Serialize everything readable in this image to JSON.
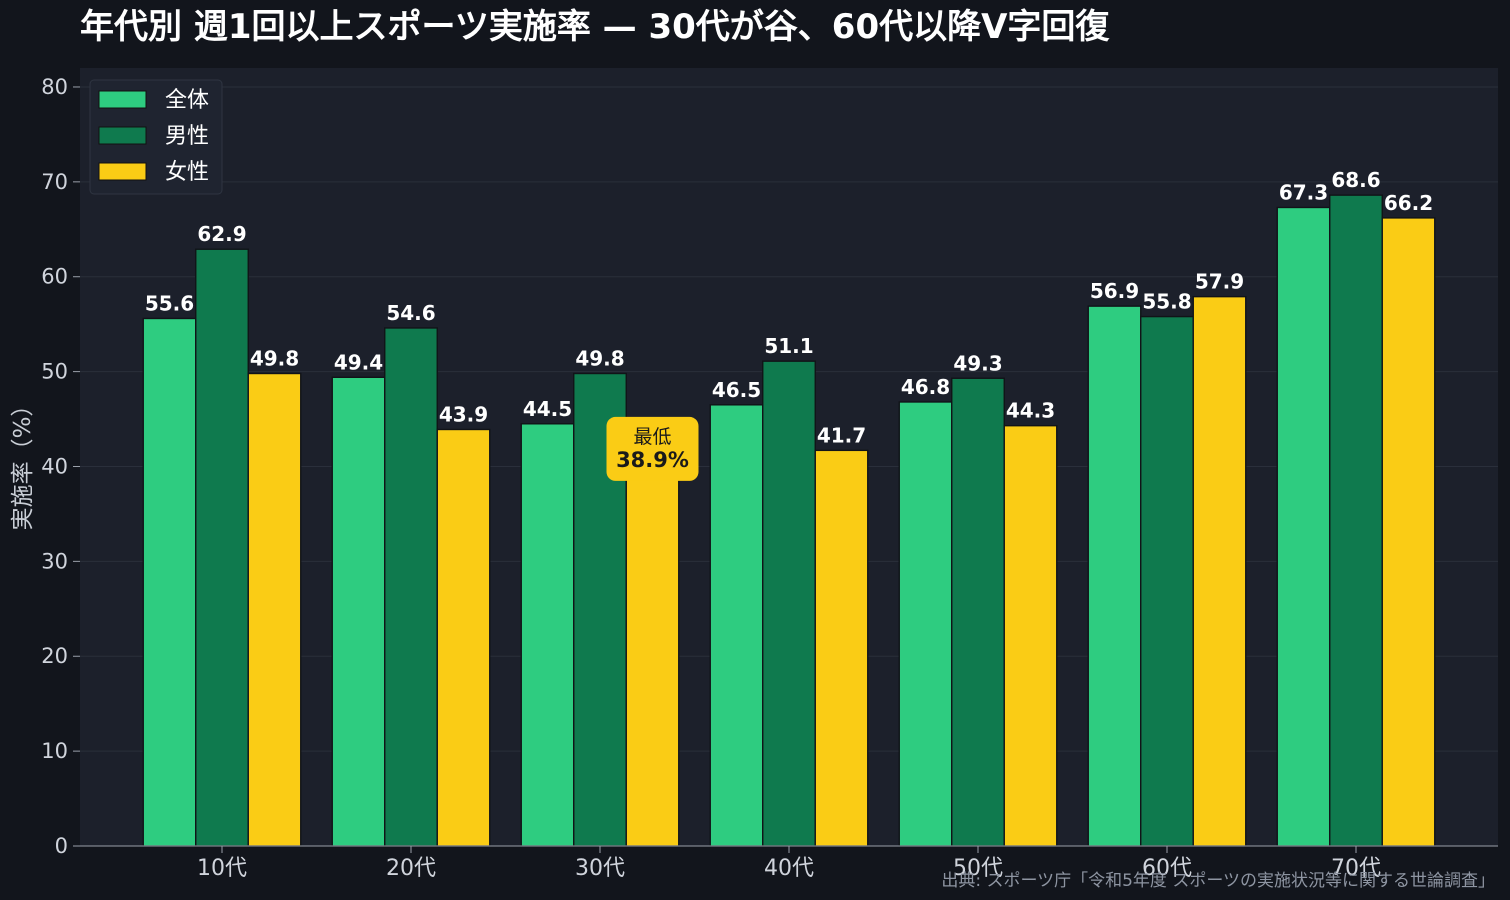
{
  "chart_data": {
    "type": "bar",
    "title": "年代別 週1回以上スポーツ実施率 — 30代が谷、60代以降V字回復",
    "ylabel": "実施率（%）",
    "xlabel": "",
    "ylim": [
      0,
      82
    ],
    "yticks": [
      0,
      10,
      20,
      30,
      40,
      50,
      60,
      70,
      80
    ],
    "grid": true,
    "legend_position": "top-left",
    "categories": [
      "10代",
      "20代",
      "30代",
      "40代",
      "50代",
      "60代",
      "70代"
    ],
    "series": [
      {
        "name": "全体",
        "color": "#2ecc80",
        "values": [
          55.6,
          49.4,
          44.5,
          46.5,
          46.8,
          56.9,
          67.3
        ]
      },
      {
        "name": "男性",
        "color": "#0f7a4e",
        "values": [
          62.9,
          54.6,
          49.8,
          51.1,
          49.3,
          55.8,
          68.6
        ]
      },
      {
        "name": "女性",
        "color": "#facc15",
        "values": [
          49.8,
          43.9,
          38.9,
          41.7,
          44.3,
          57.9,
          66.2
        ]
      }
    ],
    "annotation": {
      "category": "30代",
      "series": "女性",
      "line1": "最低",
      "line2": "38.9%",
      "color": "#facc15"
    },
    "source": "出典: スポーツ庁「令和5年度 スポーツの実施状況等に関する世論調査」"
  }
}
